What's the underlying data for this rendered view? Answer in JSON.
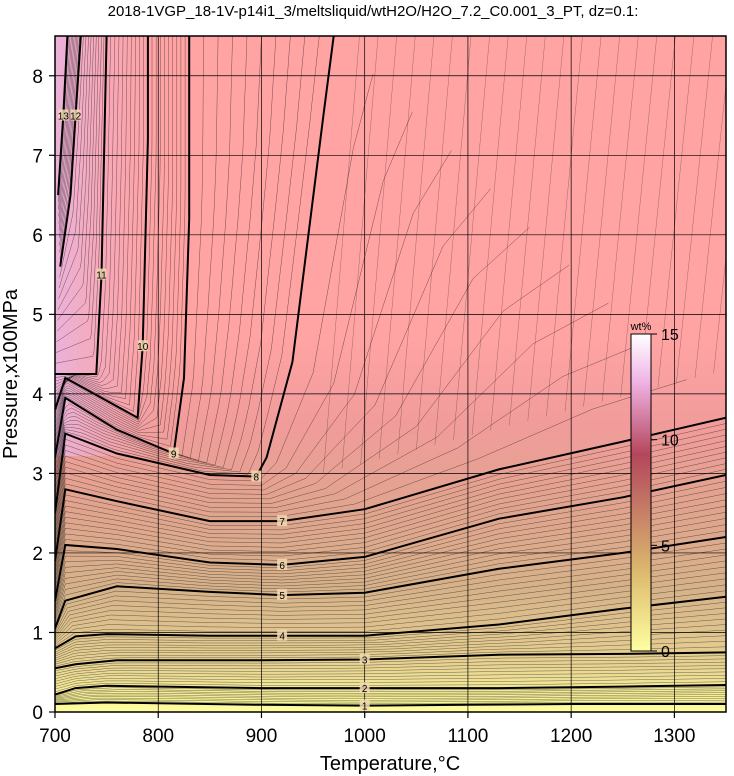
{
  "chart_data": {
    "type": "contour",
    "title": "2018-1VGP_18-1V-p14i1_3/meltsliquid/wtH2O/H2O_7.2_C0.001_3_PT, dz=0.1:",
    "xlabel": "Temperature,°C",
    "ylabel": "Pressure,x100MPa",
    "xlim": [
      700,
      1350
    ],
    "ylim": [
      0,
      8.5
    ],
    "xticks": [
      700,
      800,
      900,
      1000,
      1100,
      1200,
      1300
    ],
    "yticks": [
      0,
      1,
      2,
      3,
      4,
      5,
      6,
      7,
      8
    ],
    "grid": true,
    "colorbar": {
      "label": "wt%",
      "range": [
        0,
        15
      ],
      "ticks": [
        0,
        5,
        10,
        15
      ],
      "colors": [
        "#ffffa0",
        "#dcb96e",
        "#b4465a",
        "#f0b4e6",
        "#ffffff"
      ]
    },
    "saturated_region_color": "#ffa3a3",
    "major_contours": [
      {
        "level": 1,
        "label": "1",
        "points": [
          [
            700,
            0.1
          ],
          [
            750,
            0.12
          ],
          [
            900,
            0.09
          ],
          [
            1000,
            0.08
          ],
          [
            1100,
            0.09
          ],
          [
            1200,
            0.1
          ],
          [
            1350,
            0.1
          ]
        ]
      },
      {
        "level": 2,
        "label": "2",
        "points": [
          [
            700,
            0.22
          ],
          [
            720,
            0.3
          ],
          [
            750,
            0.33
          ],
          [
            900,
            0.3
          ],
          [
            1000,
            0.3
          ],
          [
            1130,
            0.3
          ],
          [
            1250,
            0.32
          ],
          [
            1350,
            0.34
          ]
        ]
      },
      {
        "level": 3,
        "label": "3",
        "points": [
          [
            700,
            0.55
          ],
          [
            720,
            0.6
          ],
          [
            760,
            0.65
          ],
          [
            900,
            0.65
          ],
          [
            1000,
            0.66
          ],
          [
            1130,
            0.72
          ],
          [
            1250,
            0.73
          ],
          [
            1350,
            0.75
          ]
        ]
      },
      {
        "level": 4,
        "label": "4",
        "points": [
          [
            700,
            0.8
          ],
          [
            720,
            0.95
          ],
          [
            750,
            0.98
          ],
          [
            850,
            0.96
          ],
          [
            920,
            0.96
          ],
          [
            1000,
            0.96
          ],
          [
            1130,
            1.1
          ],
          [
            1250,
            1.3
          ],
          [
            1350,
            1.45
          ]
        ]
      },
      {
        "level": 5,
        "label": "5",
        "points": [
          [
            700,
            1.05
          ],
          [
            710,
            1.4
          ],
          [
            760,
            1.58
          ],
          [
            850,
            1.51
          ],
          [
            920,
            1.47
          ],
          [
            1000,
            1.5
          ],
          [
            1130,
            1.8
          ],
          [
            1250,
            2.0
          ],
          [
            1350,
            2.2
          ]
        ]
      },
      {
        "level": 6,
        "label": "6",
        "points": [
          [
            700,
            1.4
          ],
          [
            710,
            2.1
          ],
          [
            760,
            2.05
          ],
          [
            850,
            1.88
          ],
          [
            920,
            1.85
          ],
          [
            1000,
            1.95
          ],
          [
            1130,
            2.43
          ],
          [
            1250,
            2.7
          ],
          [
            1350,
            2.98
          ]
        ]
      },
      {
        "level": 7,
        "label": "7",
        "points": [
          [
            700,
            1.9
          ],
          [
            710,
            2.8
          ],
          [
            760,
            2.65
          ],
          [
            850,
            2.4
          ],
          [
            920,
            2.4
          ],
          [
            1000,
            2.55
          ],
          [
            1130,
            3.05
          ],
          [
            1250,
            3.4
          ],
          [
            1350,
            3.7
          ]
        ]
      },
      {
        "level": 8,
        "label": "8",
        "points": [
          [
            700,
            2.5
          ],
          [
            710,
            3.5
          ],
          [
            760,
            3.25
          ],
          [
            850,
            2.98
          ],
          [
            895,
            2.96
          ],
          [
            905,
            3.2
          ],
          [
            930,
            4.4
          ],
          [
            960,
            7.5
          ],
          [
            970,
            8.5
          ]
        ]
      },
      {
        "level": 9,
        "label": "9",
        "points": [
          [
            700,
            3.2
          ],
          [
            710,
            3.95
          ],
          [
            760,
            3.55
          ],
          [
            815,
            3.25
          ],
          [
            825,
            4.2
          ],
          [
            830,
            6.2
          ],
          [
            830,
            8.5
          ]
        ]
      },
      {
        "level": 10,
        "label": "10",
        "points": [
          [
            700,
            3.8
          ],
          [
            710,
            4.2
          ],
          [
            780,
            3.7
          ],
          [
            785,
            4.6
          ],
          [
            790,
            7.2
          ],
          [
            790,
            8.5
          ]
        ]
      },
      {
        "level": 11,
        "label": "11",
        "points": [
          [
            700,
            4.25
          ],
          [
            740,
            4.25
          ],
          [
            745,
            5.5
          ],
          [
            750,
            8.5
          ]
        ]
      },
      {
        "level": 12,
        "label": "12",
        "points": [
          [
            705,
            5.6
          ],
          [
            715,
            6.5
          ],
          [
            720,
            7.5
          ],
          [
            725,
            8.5
          ]
        ]
      },
      {
        "level": 13,
        "label": "13",
        "points": [
          [
            703,
            6.5
          ],
          [
            708,
            7.5
          ],
          [
            712,
            8.5
          ]
        ]
      }
    ]
  }
}
